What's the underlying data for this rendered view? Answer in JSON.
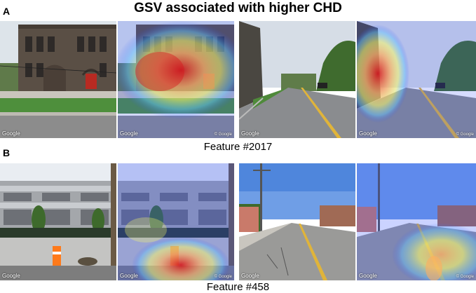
{
  "title": "GSV associated with higher CHD",
  "panels": [
    {
      "letter": "A",
      "caption": "Feature #2017"
    },
    {
      "letter": "B",
      "caption": "Feature #458"
    }
  ],
  "tiles": {
    "watermark": "Google",
    "copyright": "© Google"
  },
  "colors": {
    "heat_hot": "#d7191c",
    "heat_warm": "#fdae61",
    "heat_mid": "#ffff66",
    "heat_cool": "#66ccff",
    "heat_cold": "#2b4cff"
  }
}
